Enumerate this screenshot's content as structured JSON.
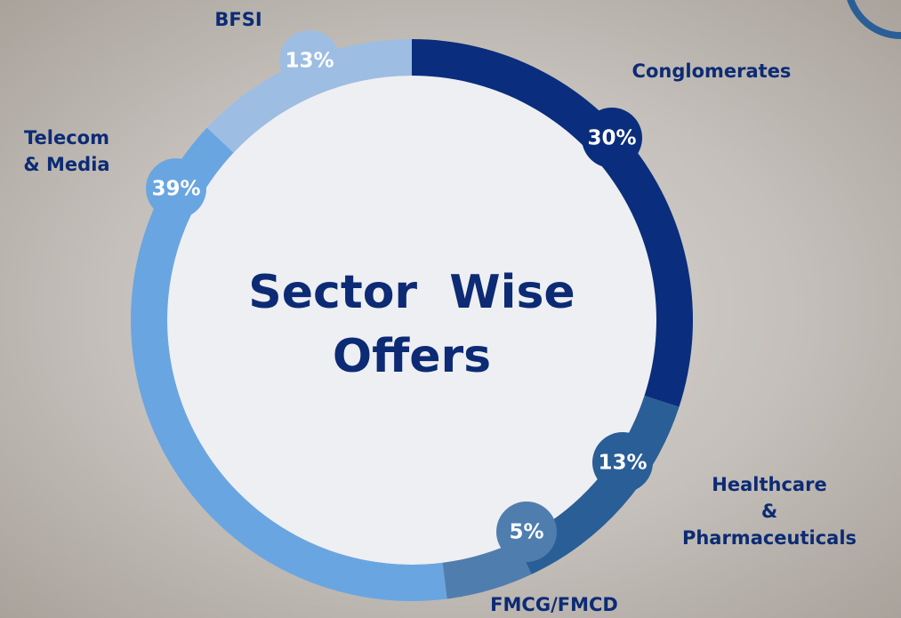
{
  "chart_data": {
    "type": "donut",
    "title": "Sector  Wise Offers",
    "categories": [
      "Conglomerates",
      "Healthcare\n& Pharmaceuticals",
      "FMCG/FMCD",
      "Telecom\n& Media",
      "BFSI"
    ],
    "values": [
      30,
      13,
      5,
      39,
      13
    ],
    "value_labels": [
      "30%",
      "13%",
      "5%",
      "39%",
      "13%"
    ],
    "colors": [
      "#0a2e7d",
      "#2a5e96",
      "#4f7eae",
      "#69a6e1",
      "#9dbde3"
    ]
  }
}
